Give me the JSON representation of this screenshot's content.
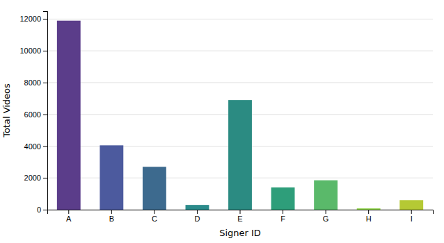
{
  "chart_data": {
    "type": "bar",
    "categories": [
      "A",
      "B",
      "C",
      "D",
      "E",
      "F",
      "G",
      "H",
      "I"
    ],
    "values": [
      11900,
      4050,
      2700,
      300,
      6900,
      1400,
      1850,
      80,
      600
    ],
    "colors": [
      "#5b3d8a",
      "#4c5a9e",
      "#3d6a8e",
      "#2b8b8b",
      "#2b8b82",
      "#2e9e7a",
      "#5ab96a",
      "#8fd44a",
      "#b5c934"
    ],
    "xlabel": "Signer ID",
    "ylabel": "Total Videos",
    "ylim": [
      0,
      12500
    ],
    "yticks": [
      0,
      2000,
      4000,
      6000,
      8000,
      10000,
      12000
    ],
    "grid": true
  }
}
